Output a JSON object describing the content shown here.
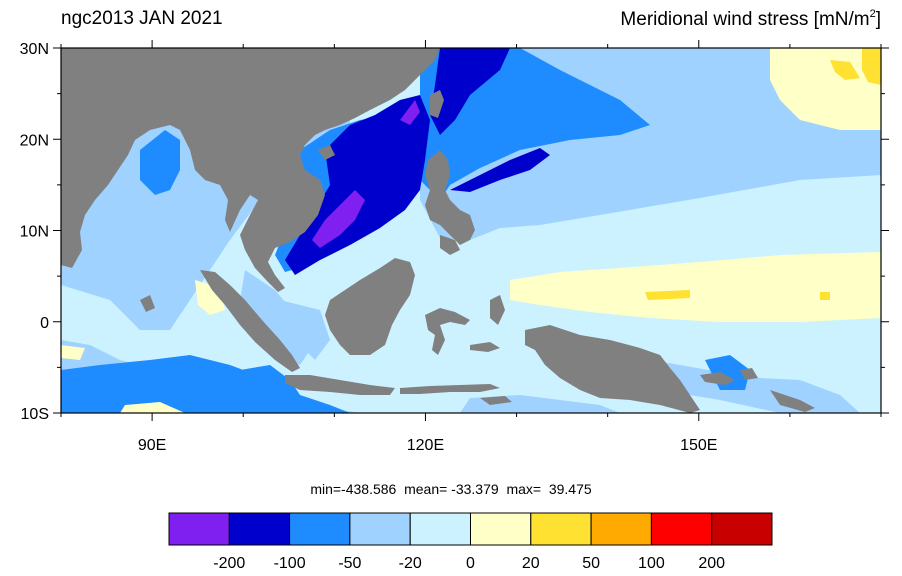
{
  "header": {
    "left_title": "ngc2013 JAN 2021",
    "right_title_main": "Meridional wind stress [mN/m",
    "right_title_sup": "2",
    "right_title_close": "]"
  },
  "stats": {
    "text": "min=-438.586  mean= -33.379  max=  39.475"
  },
  "map": {
    "lon_range": [
      80,
      170
    ],
    "lat_range": [
      -10,
      30
    ],
    "lon_ticks": [
      {
        "value": 90,
        "label": "90E"
      },
      {
        "value": 120,
        "label": "120E"
      },
      {
        "value": 150,
        "label": "150E"
      }
    ],
    "lat_ticks": [
      {
        "value": 30,
        "label": "30N"
      },
      {
        "value": 20,
        "label": "20N"
      },
      {
        "value": 10,
        "label": "10N"
      },
      {
        "value": 0,
        "label": "0"
      },
      {
        "value": -10,
        "label": "10S"
      }
    ],
    "land_color": "#808080",
    "background_color": "#CCF2FF"
  },
  "colorbar": {
    "colors": [
      "#8020F0",
      "#0000CD",
      "#1E8CFF",
      "#A0D2FF",
      "#CCF2FF",
      "#FFFFC8",
      "#FFE132",
      "#FFAA00",
      "#FF0000",
      "#C80000"
    ],
    "labels": [
      "-200",
      "-100",
      "-50",
      "-20",
      "0",
      "20",
      "50",
      "100",
      "200"
    ]
  }
}
